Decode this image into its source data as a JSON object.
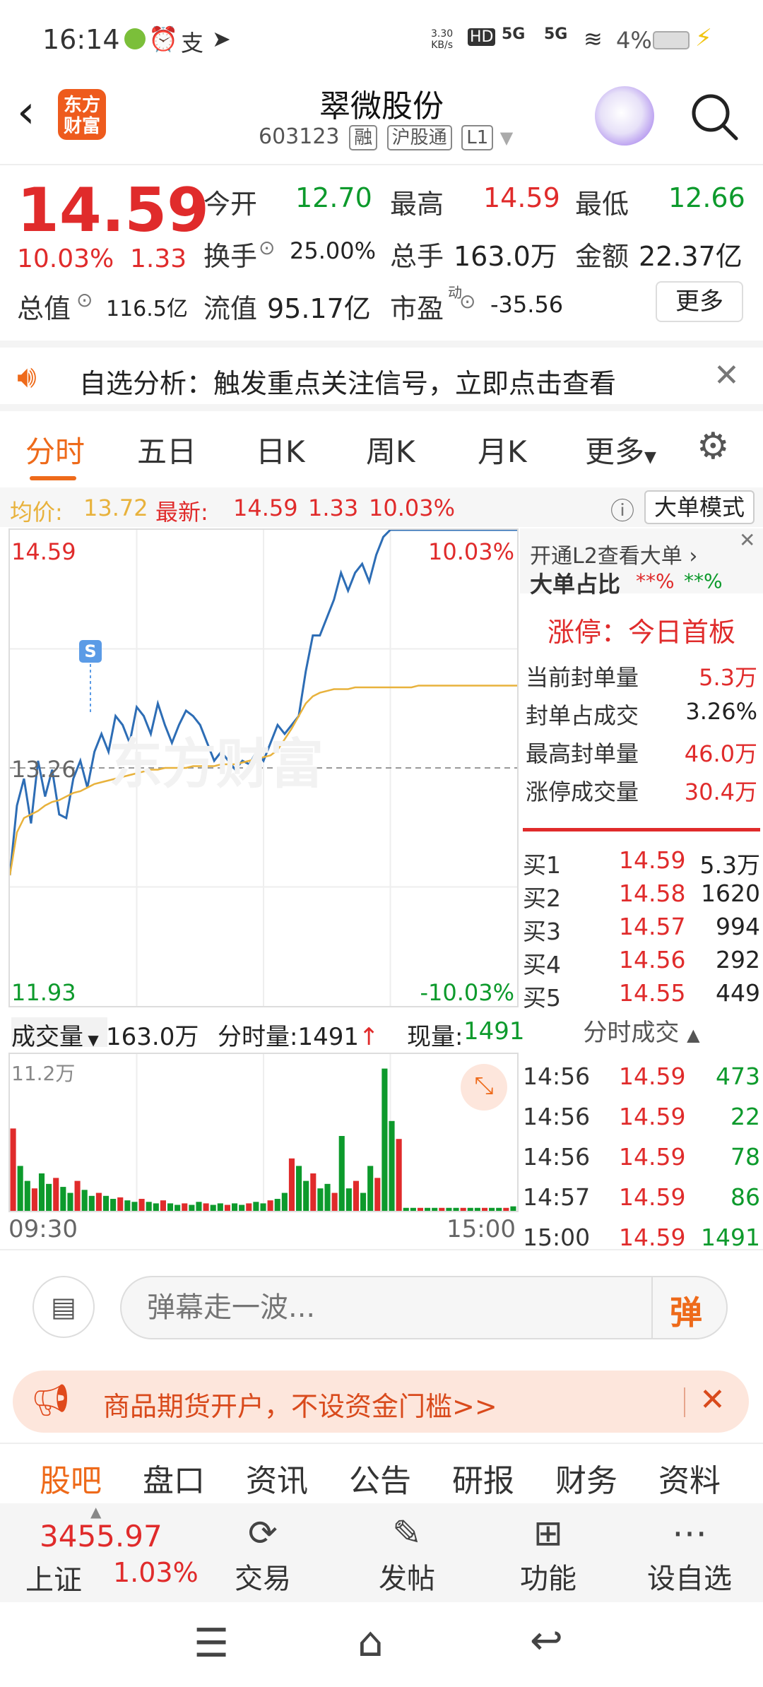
{
  "status_bar": {
    "time": "16:14",
    "net_speed_top": "3.30",
    "net_speed_bottom": "KB/s",
    "hd": "HD",
    "signal1": "5G",
    "signal2": "5G",
    "battery": "4%"
  },
  "header": {
    "logo_line1": "东方",
    "logo_line2": "财富",
    "title": "翠微股份",
    "code": "603123",
    "tags": [
      "融",
      "沪股通",
      "L1"
    ]
  },
  "quote": {
    "price": "14.59",
    "change_pct": "10.03%",
    "change": "1.33",
    "open_label": "今开",
    "open": "12.70",
    "high_label": "最高",
    "high": "14.59",
    "low_label": "最低",
    "low": "12.66",
    "turnover_label": "换手",
    "turnover": "25.00%",
    "volume_label": "总手",
    "volume": "163.0万",
    "amount_label": "金额",
    "amount": "22.37亿",
    "mktcap_label": "总值",
    "mktcap": "116.5亿",
    "float_label": "流值",
    "float": "95.17亿",
    "pe_label": "市盈",
    "pe_sup": "动",
    "pe": "-35.56",
    "more_button": "更多"
  },
  "notice": {
    "text": "自选分析：触发重点关注信号，立即点击查看"
  },
  "tabs": {
    "items": [
      "分时",
      "五日",
      "日K",
      "周K",
      "月K",
      "更多"
    ],
    "active": 0
  },
  "infobar": {
    "avg_label": "均价:",
    "avg": "13.72",
    "latest_label": "最新:",
    "latest": "14.59",
    "chg": "1.33",
    "chg_pct": "10.03%",
    "mode_button": "大单模式"
  },
  "chart_data": {
    "type": "line",
    "y_max_label": "14.59",
    "y_mid_label": "13.26",
    "y_min_label": "11.93",
    "pct_max_label": "10.03%",
    "pct_min_label": "-10.03%",
    "ylim": [
      11.93,
      14.59
    ],
    "watermark": "东方财富",
    "marker_label": "S",
    "series": [
      {
        "values": [
          12.66,
          13.05,
          13.2,
          12.95,
          13.3,
          13.1,
          13.25,
          13.0,
          12.98,
          13.2,
          13.3,
          13.15,
          13.35,
          13.45,
          13.35,
          13.55,
          13.5,
          13.4,
          13.6,
          13.55,
          13.45,
          13.62,
          13.5,
          13.4,
          13.5,
          13.58,
          13.55,
          13.5,
          13.4,
          13.3,
          13.35,
          13.3,
          13.25,
          13.3,
          13.28,
          13.35,
          13.3,
          13.4,
          13.5,
          13.45,
          13.5,
          13.55,
          13.8,
          14.0,
          14.0,
          14.1,
          14.2,
          14.35,
          14.25,
          14.35,
          14.4,
          14.3,
          14.45,
          14.55,
          14.59,
          14.59,
          14.59,
          14.59,
          14.59,
          14.59,
          14.59,
          14.59,
          14.59,
          14.59,
          14.59,
          14.59,
          14.59,
          14.59,
          14.59,
          14.59,
          14.59,
          14.59,
          14.59
        ]
      },
      {
        "values": [
          12.66,
          12.9,
          12.98,
          13.0,
          13.02,
          13.05,
          13.07,
          13.08,
          13.1,
          13.12,
          13.13,
          13.15,
          13.17,
          13.18,
          13.19,
          13.2,
          13.21,
          13.22,
          13.23,
          13.24,
          13.25,
          13.25,
          13.26,
          13.26,
          13.26,
          13.26,
          13.27,
          13.27,
          13.27,
          13.27,
          13.28,
          13.28,
          13.28,
          13.29,
          13.3,
          13.31,
          13.32,
          13.33,
          13.36,
          13.42,
          13.48,
          13.55,
          13.62,
          13.66,
          13.68,
          13.69,
          13.7,
          13.7,
          13.7,
          13.71,
          13.71,
          13.71,
          13.71,
          13.71,
          13.71,
          13.71,
          13.71,
          13.71,
          13.72,
          13.72,
          13.72,
          13.72,
          13.72,
          13.72,
          13.72,
          13.72,
          13.72,
          13.72,
          13.72,
          13.72,
          13.72,
          13.72,
          13.72
        ]
      }
    ]
  },
  "order_panel": {
    "l2_link": "开通L2查看大单",
    "ratio_label": "大单占比",
    "ratio_buy": "**%",
    "ratio_sell": "**%",
    "limit_title": "涨停：今日首板",
    "rows": [
      {
        "label": "当前封单量",
        "value": "5.3万"
      },
      {
        "label": "封单占成交",
        "value": "3.26%"
      },
      {
        "label": "最高封单量",
        "value": "46.0万"
      },
      {
        "label": "涨停成交量",
        "value": "30.4万"
      }
    ],
    "bids": [
      {
        "label": "买1",
        "price": "14.59",
        "vol": "5.3万"
      },
      {
        "label": "买2",
        "price": "14.58",
        "vol": "1620"
      },
      {
        "label": "买3",
        "price": "14.57",
        "vol": "994"
      },
      {
        "label": "买4",
        "price": "14.56",
        "vol": "292"
      },
      {
        "label": "买5",
        "price": "14.55",
        "vol": "449"
      }
    ]
  },
  "volume": {
    "label": "成交量",
    "total": "163.0万",
    "tick_label": "分时量:1491",
    "now_label": "现量:",
    "now": "1491",
    "max_label": "11.2万",
    "start_time": "09:30",
    "end_time": "15:00",
    "bars": [
      0.55,
      0.3,
      0.2,
      0.15,
      0.25,
      0.18,
      0.22,
      0.16,
      0.12,
      0.2,
      0.14,
      0.1,
      0.12,
      0.1,
      0.08,
      0.09,
      0.07,
      0.06,
      0.08,
      0.06,
      0.05,
      0.07,
      0.05,
      0.04,
      0.05,
      0.04,
      0.06,
      0.05,
      0.04,
      0.05,
      0.04,
      0.05,
      0.04,
      0.05,
      0.06,
      0.05,
      0.07,
      0.08,
      0.12,
      0.35,
      0.3,
      0.2,
      0.25,
      0.15,
      0.18,
      0.12,
      0.5,
      0.15,
      0.2,
      0.12,
      0.3,
      0.22,
      0.95,
      0.6,
      0.48,
      0.02,
      0.02,
      0.02,
      0.02,
      0.02,
      0.02,
      0.02,
      0.02,
      0.02,
      0.02,
      0.02,
      0.02,
      0.02,
      0.02,
      0.02,
      0.03
    ],
    "bar_colors": [
      "#e02b2b",
      "#0d9a2c"
    ]
  },
  "trades": {
    "title": "分时成交",
    "rows": [
      {
        "time": "14:56",
        "price": "14.59",
        "vol": "473"
      },
      {
        "time": "14:56",
        "price": "14.59",
        "vol": "22"
      },
      {
        "time": "14:56",
        "price": "14.59",
        "vol": "78"
      },
      {
        "time": "14:57",
        "price": "14.59",
        "vol": "86"
      },
      {
        "time": "15:00",
        "price": "14.59",
        "vol": "1491"
      }
    ]
  },
  "comment": {
    "placeholder": "弹幕走一波...",
    "danmu_button": "弹"
  },
  "ad": {
    "text": "商品期货开户，不设资金门槛>>"
  },
  "subtabs": {
    "items": [
      "股吧",
      "盘口",
      "资讯",
      "公告",
      "研报",
      "财务",
      "资料"
    ],
    "active": 0
  },
  "toolbar": {
    "index_value": "3455.97",
    "index_name": "上证",
    "index_pct": "1.03%",
    "items": [
      {
        "label": "交易",
        "icon": "yen-exchange-icon"
      },
      {
        "label": "发帖",
        "icon": "edit-icon"
      },
      {
        "label": "功能",
        "icon": "grid-icon"
      },
      {
        "label": "设自选",
        "icon": "more-icon"
      }
    ]
  },
  "colors": {
    "up": "#e02b2b",
    "down": "#0d9a2c",
    "accent": "#ee6a1a",
    "price_line": "#2d6db5",
    "avg_line": "#e8b23c"
  }
}
